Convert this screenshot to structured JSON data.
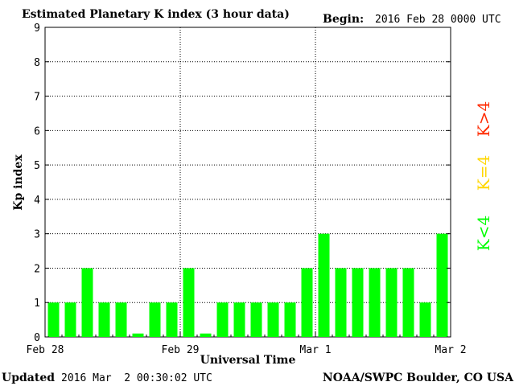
{
  "header": {
    "title": "Estimated Planetary K index (3 hour data)",
    "begin_label": "Begin:",
    "begin_value": "2016 Feb 28 0000 UTC"
  },
  "footer": {
    "updated_label": "Updated",
    "updated_value": "2016 Mar  2 00:30:02 UTC",
    "source": "NOAA/SWPC Boulder, CO USA"
  },
  "legend": [
    {
      "label": "K<4",
      "color": "#00ff00"
    },
    {
      "label": "K=4",
      "color": "#ffd700"
    },
    {
      "label": "K>4",
      "color": "#ff2a00"
    }
  ],
  "chart_data": {
    "type": "bar",
    "title": "Estimated Planetary K index (3 hour data)",
    "xlabel": "Universal Time",
    "ylabel": "Kp index",
    "ylim": [
      0,
      9
    ],
    "yticks": [
      "0",
      "1",
      "2",
      "3",
      "4",
      "5",
      "6",
      "7",
      "8",
      "9"
    ],
    "day_labels": [
      "Feb 28",
      "Feb 29",
      "Mar 1",
      "Mar 2"
    ],
    "interval_hours": 3,
    "values": [
      1,
      1,
      2,
      1,
      1,
      0.1,
      1,
      1,
      2,
      0.1,
      1,
      1,
      1,
      1,
      1,
      2,
      3,
      2,
      2,
      2,
      2,
      2,
      1,
      3
    ],
    "bar_color": "#00ff00",
    "grid": "dotted, at each day boundary and each Kp level"
  }
}
